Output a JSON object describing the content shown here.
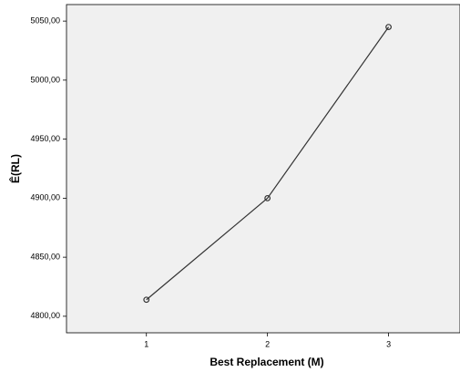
{
  "chart_data": {
    "type": "line",
    "x_label": "Best Replacement (M)",
    "y_label": "Ê(RL)",
    "x": [
      1,
      2,
      3
    ],
    "series": [
      {
        "color": "#333333",
        "values": [
          4814,
          4900,
          5045
        ]
      }
    ],
    "xlim": [
      0.34,
      3.59
    ],
    "xticks": [
      1,
      2,
      3
    ],
    "ylim": [
      4786,
      5064
    ],
    "yticks": [
      {
        "value": 4800,
        "label": "4800,00"
      },
      {
        "value": 4850,
        "label": "4850,00"
      },
      {
        "value": 4900,
        "label": "4900,00"
      },
      {
        "value": 4950,
        "label": "4950,00"
      },
      {
        "value": 5000,
        "label": "5000,00"
      },
      {
        "value": 5050,
        "label": "5050,00"
      }
    ],
    "markers": true
  }
}
